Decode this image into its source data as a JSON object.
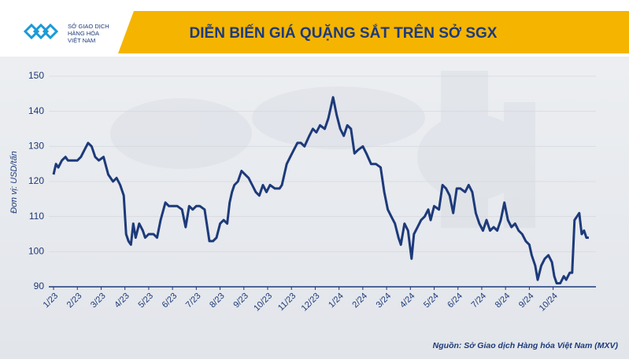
{
  "header": {
    "logo_text": [
      "SỞ GIAO DỊCH",
      "HÀNG HÓA",
      "VIỆT NAM"
    ]
  },
  "chart_data": {
    "type": "line",
    "title": "DIỄN BIẾN GIÁ QUẶNG SẮT TRÊN SỞ SGX",
    "ylabel": "Đơn vị: USD/tấn",
    "source": "Nguồn: Sở Giao dịch Hàng hóa Việt Nam (MXV)",
    "xlim": [
      -0.2,
      22.8
    ],
    "ylim": [
      90,
      150
    ],
    "yticks": [
      90,
      100,
      110,
      120,
      130,
      140,
      150
    ],
    "grid": true,
    "xticks": [
      {
        "value": 0,
        "label": "1/23"
      },
      {
        "value": 1,
        "label": "2/23"
      },
      {
        "value": 2,
        "label": "3/23"
      },
      {
        "value": 3,
        "label": "4/23"
      },
      {
        "value": 4,
        "label": "5/23"
      },
      {
        "value": 5,
        "label": "6/23"
      },
      {
        "value": 6,
        "label": "7/23"
      },
      {
        "value": 7,
        "label": "8/23"
      },
      {
        "value": 8,
        "label": "9/23"
      },
      {
        "value": 9,
        "label": "10/23"
      },
      {
        "value": 10,
        "label": "11/23"
      },
      {
        "value": 11,
        "label": "12/23"
      },
      {
        "value": 12,
        "label": "1/24"
      },
      {
        "value": 13,
        "label": "2/24"
      },
      {
        "value": 14,
        "label": "3/24"
      },
      {
        "value": 15,
        "label": "4/24"
      },
      {
        "value": 16,
        "label": "5/24"
      },
      {
        "value": 17,
        "label": "6/24"
      },
      {
        "value": 18,
        "label": "7/24"
      },
      {
        "value": 19,
        "label": "8/24"
      },
      {
        "value": 20,
        "label": "9/24"
      },
      {
        "value": 21,
        "label": "10/24"
      }
    ],
    "color": "#1d3a7a",
    "x": [
      0,
      0.1,
      0.2,
      0.35,
      0.5,
      0.6,
      0.8,
      1.0,
      1.15,
      1.3,
      1.45,
      1.6,
      1.75,
      1.9,
      2.1,
      2.3,
      2.5,
      2.65,
      2.8,
      2.95,
      3.05,
      3.15,
      3.25,
      3.35,
      3.45,
      3.6,
      3.75,
      3.85,
      4.0,
      4.2,
      4.35,
      4.5,
      4.7,
      4.85,
      5.0,
      5.2,
      5.4,
      5.55,
      5.7,
      5.85,
      6.0,
      6.15,
      6.35,
      6.55,
      6.7,
      6.85,
      7.0,
      7.15,
      7.3,
      7.4,
      7.5,
      7.6,
      7.75,
      7.9,
      8.05,
      8.2,
      8.35,
      8.5,
      8.65,
      8.8,
      8.95,
      9.1,
      9.3,
      9.5,
      9.6,
      9.8,
      9.95,
      10.1,
      10.25,
      10.4,
      10.55,
      10.75,
      10.9,
      11.05,
      11.2,
      11.4,
      11.55,
      11.75,
      11.9,
      12.05,
      12.2,
      12.35,
      12.5,
      12.65,
      12.8,
      13.0,
      13.15,
      13.35,
      13.55,
      13.75,
      13.9,
      14.05,
      14.2,
      14.35,
      14.5,
      14.6,
      14.75,
      14.9,
      15.05,
      15.15,
      15.3,
      15.45,
      15.6,
      15.75,
      15.85,
      16.0,
      16.2,
      16.35,
      16.5,
      16.65,
      16.8,
      16.95,
      17.1,
      17.3,
      17.45,
      17.6,
      17.75,
      17.9,
      18.05,
      18.2,
      18.35,
      18.5,
      18.65,
      18.8,
      18.95,
      19.1,
      19.25,
      19.4,
      19.55,
      19.7,
      19.85,
      20.0,
      20.1,
      20.25,
      20.35,
      20.5,
      20.65,
      20.8,
      20.95,
      21.05,
      21.15,
      21.3,
      21.45,
      21.55,
      21.7,
      21.8,
      21.9,
      22.0,
      22.1,
      22.2,
      22.3,
      22.4,
      22.5
    ],
    "values": [
      122,
      125,
      124,
      126,
      127,
      126,
      126,
      126,
      127,
      129,
      131,
      130,
      127,
      126,
      127,
      122,
      120,
      121,
      119,
      116,
      105,
      103,
      102,
      108,
      104,
      108,
      106,
      104,
      105,
      105,
      104,
      109,
      114,
      113,
      113,
      113,
      112,
      107,
      113,
      112,
      113,
      113,
      112,
      103,
      103,
      104,
      108,
      109,
      108,
      114,
      117,
      119,
      120,
      123,
      122,
      121,
      119,
      117,
      116,
      119,
      117,
      119,
      118,
      118,
      119,
      125,
      127,
      129,
      131,
      131,
      130,
      133,
      135,
      134,
      136,
      135,
      138,
      144,
      139,
      135,
      133,
      136,
      135,
      128,
      129,
      130,
      128,
      125,
      125,
      124,
      117,
      112,
      110,
      108,
      104,
      102,
      108,
      106,
      98,
      105,
      107,
      109,
      110,
      112,
      109,
      113,
      112,
      119,
      118,
      116,
      111,
      118,
      118,
      117,
      119,
      117,
      111,
      108,
      106,
      109,
      106,
      107,
      106,
      109,
      114,
      109,
      107,
      108,
      106,
      105,
      103,
      102,
      99,
      96,
      92,
      96,
      98,
      99,
      97,
      93,
      91,
      91,
      93,
      92,
      94,
      94,
      109,
      110,
      111,
      105,
      106,
      104,
      104
    ]
  }
}
